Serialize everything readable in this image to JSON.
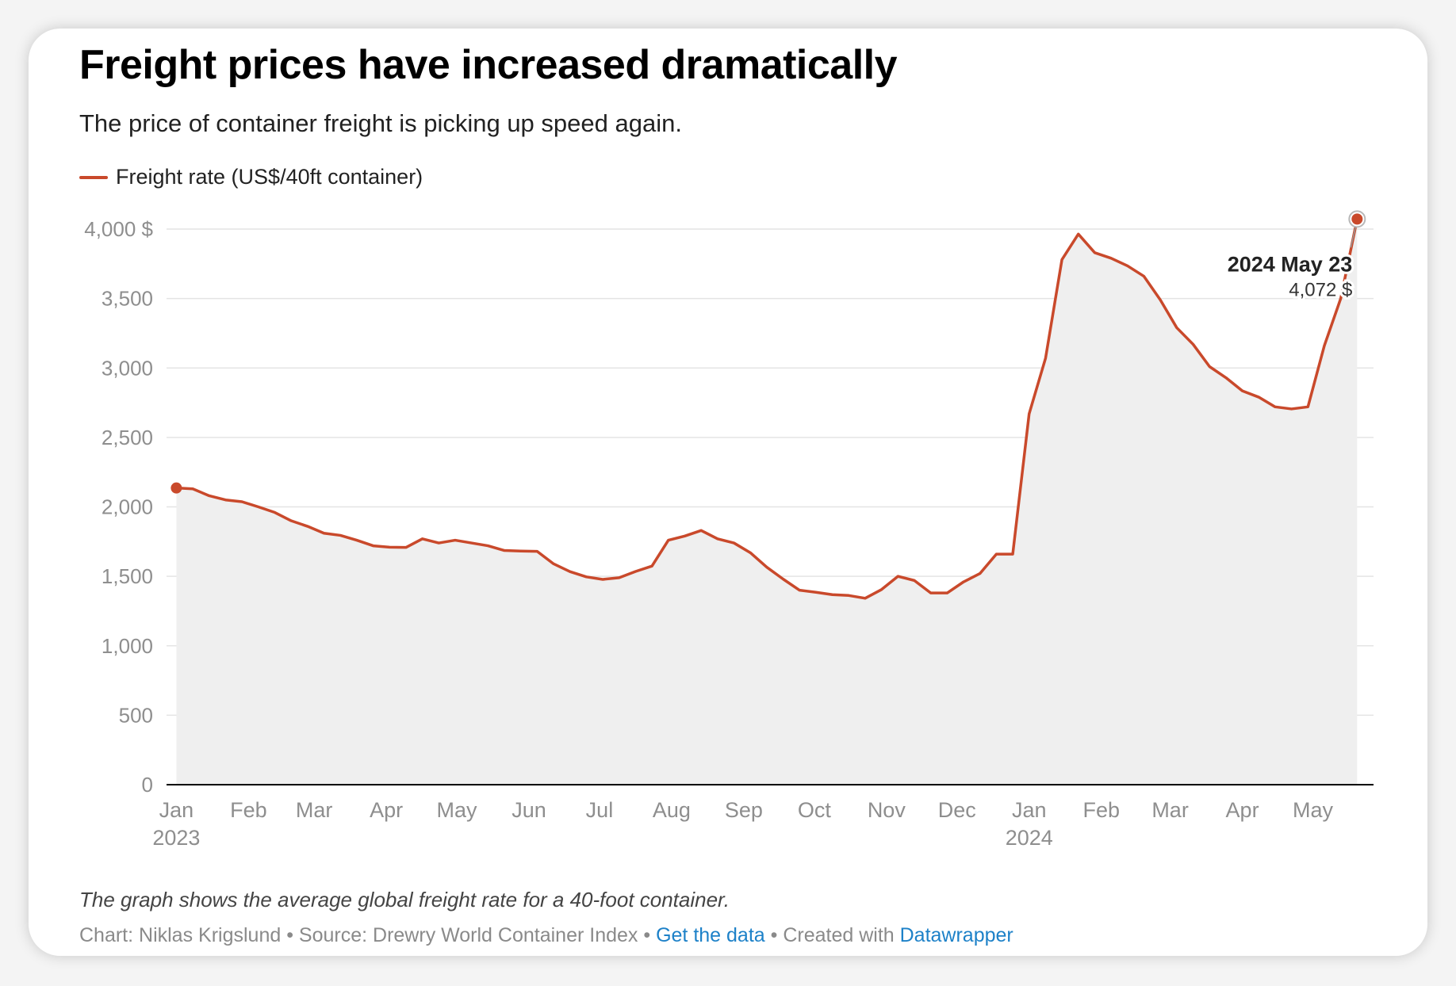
{
  "title": "Freight prices have increased dramatically",
  "subtitle": "The price of container freight is picking up speed again.",
  "legend_label": "Freight rate (US$/40ft container)",
  "colors": {
    "line": "#c9492b",
    "area": "#efefef",
    "grid": "#e4e4e4",
    "axis": "#000000",
    "tick": "#8e8e8e"
  },
  "annotation": {
    "date": "2024 May 23",
    "value": "4,072 $"
  },
  "notes": "The graph shows the average global freight rate for a 40-foot container.",
  "credits": {
    "chart": "Chart: Niklas Krigslund",
    "sep1": " • ",
    "source": "Source: Drewry World Container Index",
    "sep2": " • ",
    "get_data": "Get the data",
    "sep3": " • Created with ",
    "tool": "Datawrapper"
  },
  "chart_data": {
    "type": "area",
    "title": "Freight prices have increased dramatically",
    "series": [
      {
        "name": "Freight rate (US$/40ft container)",
        "x_weeks": [
          0,
          1,
          2,
          3,
          4,
          5,
          6,
          7,
          8,
          9,
          10,
          11,
          12,
          13,
          14,
          15,
          16,
          17,
          18,
          19,
          20,
          21,
          22,
          23,
          24,
          25,
          26,
          27,
          28,
          29,
          30,
          31,
          32,
          33,
          34,
          35,
          36,
          37,
          38,
          39,
          40,
          41,
          42,
          43,
          44,
          45,
          46,
          47,
          48,
          49,
          50,
          51,
          52,
          53,
          54,
          55,
          56,
          57,
          58,
          59,
          60,
          61,
          62,
          63,
          64,
          65,
          66,
          67,
          68,
          69,
          70,
          71,
          72
        ],
        "values": [
          2136,
          2130,
          2080,
          2050,
          2037,
          2000,
          1960,
          1900,
          1860,
          1810,
          1795,
          1760,
          1720,
          1710,
          1708,
          1770,
          1740,
          1760,
          1740,
          1720,
          1686,
          1682,
          1680,
          1590,
          1534,
          1496,
          1478,
          1490,
          1535,
          1574,
          1760,
          1790,
          1830,
          1770,
          1740,
          1670,
          1566,
          1480,
          1400,
          1385,
          1368,
          1362,
          1342,
          1405,
          1500,
          1470,
          1380,
          1380,
          1460,
          1520,
          1660,
          1660,
          2670,
          3070,
          3780,
          3964,
          3830,
          3790,
          3735,
          3660,
          3490,
          3290,
          3170,
          3010,
          2930,
          2835,
          2790,
          2720,
          2705,
          2720,
          3160,
          3500,
          4072
        ]
      }
    ],
    "x_ticks": [
      {
        "week": 0,
        "label": "Jan",
        "sub": "2023"
      },
      {
        "week": 4.4,
        "label": "Feb",
        "sub": ""
      },
      {
        "week": 8.4,
        "label": "Mar",
        "sub": ""
      },
      {
        "week": 12.8,
        "label": "Apr",
        "sub": ""
      },
      {
        "week": 17.1,
        "label": "May",
        "sub": ""
      },
      {
        "week": 21.5,
        "label": "Jun",
        "sub": ""
      },
      {
        "week": 25.8,
        "label": "Jul",
        "sub": ""
      },
      {
        "week": 30.2,
        "label": "Aug",
        "sub": ""
      },
      {
        "week": 34.6,
        "label": "Sep",
        "sub": ""
      },
      {
        "week": 38.9,
        "label": "Oct",
        "sub": ""
      },
      {
        "week": 43.3,
        "label": "Nov",
        "sub": ""
      },
      {
        "week": 47.6,
        "label": "Dec",
        "sub": ""
      },
      {
        "week": 52,
        "label": "Jan",
        "sub": "2024"
      },
      {
        "week": 56.4,
        "label": "Feb",
        "sub": ""
      },
      {
        "week": 60.6,
        "label": "Mar",
        "sub": ""
      },
      {
        "week": 65.0,
        "label": "Apr",
        "sub": ""
      },
      {
        "week": 69.3,
        "label": "May",
        "sub": ""
      }
    ],
    "y_ticks": [
      {
        "value": 0,
        "label": "0"
      },
      {
        "value": 500,
        "label": "500"
      },
      {
        "value": 1000,
        "label": "1,000"
      },
      {
        "value": 1500,
        "label": "1,500"
      },
      {
        "value": 2000,
        "label": "2,000"
      },
      {
        "value": 2500,
        "label": "2,500"
      },
      {
        "value": 3000,
        "label": "3,000"
      },
      {
        "value": 3500,
        "label": "3,500"
      },
      {
        "value": 4000,
        "label": "4,000 $"
      }
    ],
    "xlabel": "",
    "ylabel": "",
    "ylim": [
      0,
      4000
    ],
    "xlim_weeks": [
      -0.6,
      73
    ],
    "grid": true
  }
}
